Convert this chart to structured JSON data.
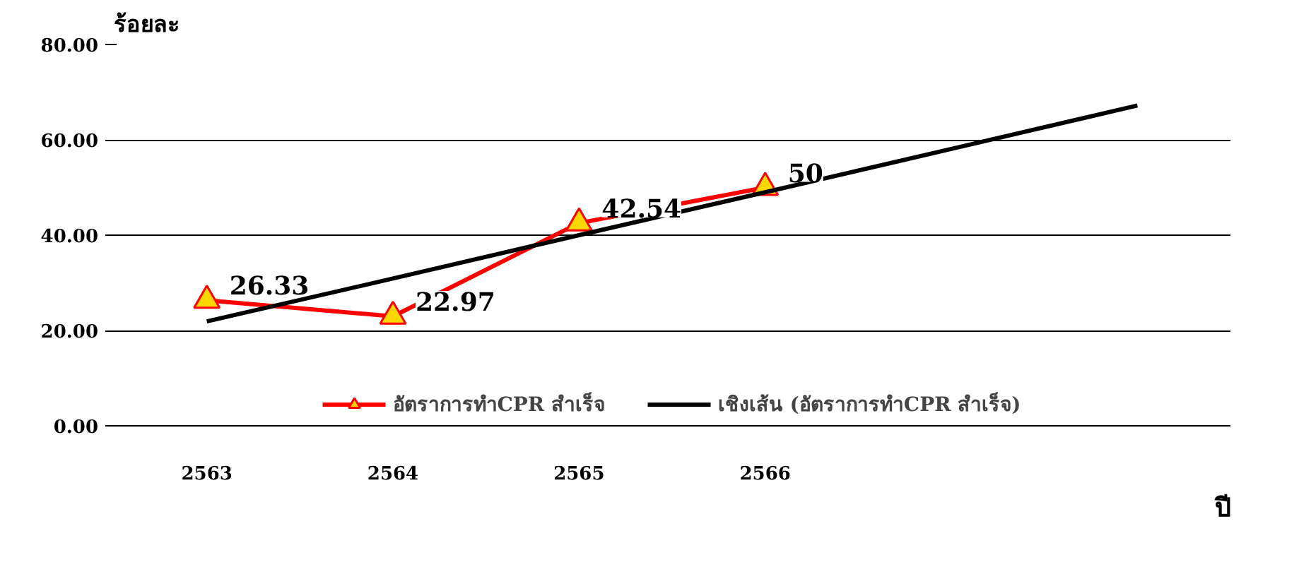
{
  "chart_data": {
    "type": "line",
    "ylabel": "ร้อยละ",
    "xlabel": "ปี",
    "categories": [
      "2563",
      "2564",
      "2565",
      "2566",
      null,
      null
    ],
    "series": [
      {
        "name": "อัตราการทำCPR สำเร็จ",
        "color": "#ff0000",
        "values": [
          26.33,
          22.97,
          42.54,
          50,
          null,
          null
        ],
        "marker": "triangle",
        "value_labels": [
          "26.33",
          "22.97",
          "42.54",
          "50",
          null,
          null
        ]
      },
      {
        "name": "เชิงเส้น (อัตราการทำCPR สำเร็จ)",
        "color": "#000000",
        "values": [
          21.9,
          30.9,
          40,
          49,
          58.1,
          67.2
        ],
        "marker": "none"
      }
    ],
    "ylim": [
      0,
      80
    ],
    "yticks": [
      {
        "value": 0,
        "label": "0.00"
      },
      {
        "value": 20,
        "label": "20.00"
      },
      {
        "value": 40,
        "label": "40.00"
      },
      {
        "value": 60,
        "label": "60.00"
      },
      {
        "value": 80,
        "label": "80.00"
      }
    ],
    "grid": "y",
    "legend": "bottom",
    "line_style": "solid"
  }
}
